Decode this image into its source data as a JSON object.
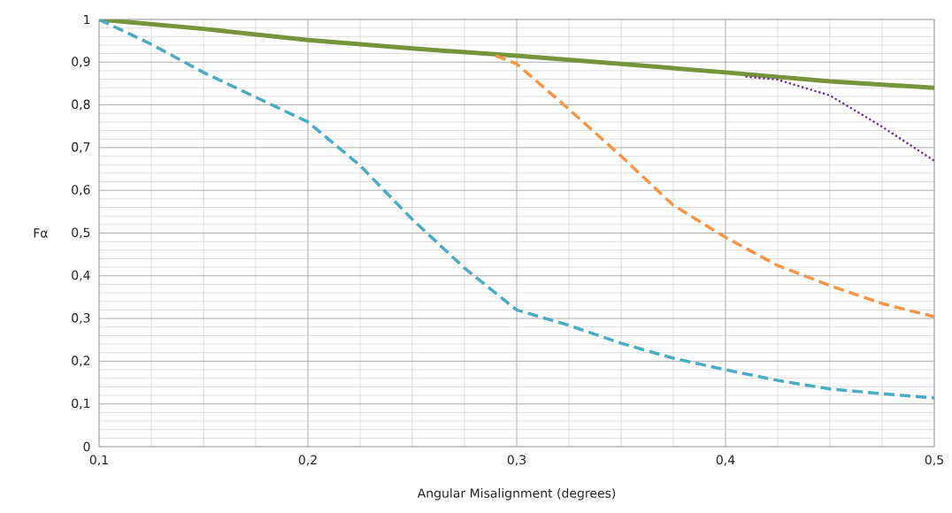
{
  "chart_data": {
    "type": "line",
    "xlabel": "Angular Misalignment (degrees)",
    "ylabel": "Fα",
    "xlim": [
      0.1,
      0.5
    ],
    "ylim": [
      0,
      1
    ],
    "xticks": [
      {
        "value": 0.1,
        "label": "0,1"
      },
      {
        "value": 0.2,
        "label": "0,2"
      },
      {
        "value": 0.3,
        "label": "0,3"
      },
      {
        "value": 0.4,
        "label": "0,4"
      },
      {
        "value": 0.5,
        "label": "0,5"
      }
    ],
    "yticks": [
      0,
      {
        "value": 0.1,
        "label": "0,1"
      },
      {
        "value": 0.2,
        "label": "0,2"
      },
      {
        "value": 0.3,
        "label": "0,3"
      },
      {
        "value": 0.4,
        "label": "0,4"
      },
      {
        "value": 0.5,
        "label": "0,5"
      },
      {
        "value": 0.6,
        "label": "0,6"
      },
      {
        "value": 0.7,
        "label": "0,7"
      },
      {
        "value": 0.8,
        "label": "0,8"
      },
      {
        "value": 0.9,
        "label": "0,9"
      },
      1
    ],
    "grid": true,
    "marker": "none",
    "series": [
      {
        "color": "#77933c",
        "line_style": "solid",
        "x": [
          0.1,
          0.15,
          0.2,
          0.25,
          0.3,
          0.35,
          0.4,
          0.45,
          0.5
        ],
        "values": [
          1.0,
          0.978,
          0.952,
          0.932,
          0.915,
          0.896,
          0.876,
          0.855,
          0.84
        ]
      },
      {
        "color": "#4bacc6",
        "line_style": "dashed",
        "x": [
          0.1,
          0.125,
          0.15,
          0.175,
          0.2,
          0.225,
          0.25,
          0.275,
          0.3,
          0.325,
          0.35,
          0.375,
          0.4,
          0.425,
          0.45,
          0.475,
          0.5
        ],
        "values": [
          1.0,
          0.942,
          0.876,
          0.818,
          0.76,
          0.658,
          0.532,
          0.418,
          0.32,
          0.284,
          0.242,
          0.207,
          0.18,
          0.155,
          0.135,
          0.124,
          0.114
        ]
      },
      {
        "color": "#f79646",
        "line_style": "dashed",
        "x": [
          0.29,
          0.3,
          0.325,
          0.35,
          0.375,
          0.4,
          0.425,
          0.45,
          0.475,
          0.5
        ],
        "values": [
          0.915,
          0.896,
          0.79,
          0.68,
          0.565,
          0.49,
          0.424,
          0.377,
          0.335,
          0.304
        ]
      },
      {
        "color": "#7030a0",
        "line_style": "dotted",
        "x": [
          0.41,
          0.425,
          0.45,
          0.475,
          0.5
        ],
        "values": [
          0.866,
          0.859,
          0.822,
          0.749,
          0.669
        ]
      }
    ]
  }
}
